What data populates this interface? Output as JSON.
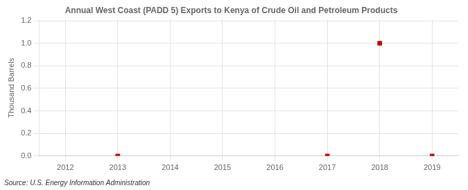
{
  "chart_data": {
    "type": "scatter",
    "title": "Annual West Coast (PADD 5) Exports to Kenya of Crude Oil and Petroleum Products",
    "ylabel": "Thousand Barrels",
    "source": "Source: U.S. Energy Information Administration",
    "x": [
      2013,
      2017,
      2018,
      2019
    ],
    "values": [
      0,
      0,
      1,
      0
    ],
    "color": "#cc0000",
    "marker": "square",
    "xlim": [
      2011.5,
      2019.5
    ],
    "xticks": [
      2012,
      2013,
      2014,
      2015,
      2016,
      2017,
      2018,
      2019
    ],
    "ylim": [
      0,
      1.21
    ],
    "yticks": [
      {
        "value": 0,
        "label": "0.0"
      },
      0.2,
      0.4,
      0.6,
      0.8,
      {
        "value": 1,
        "label": "1.0"
      },
      1.2
    ],
    "grid": true
  }
}
